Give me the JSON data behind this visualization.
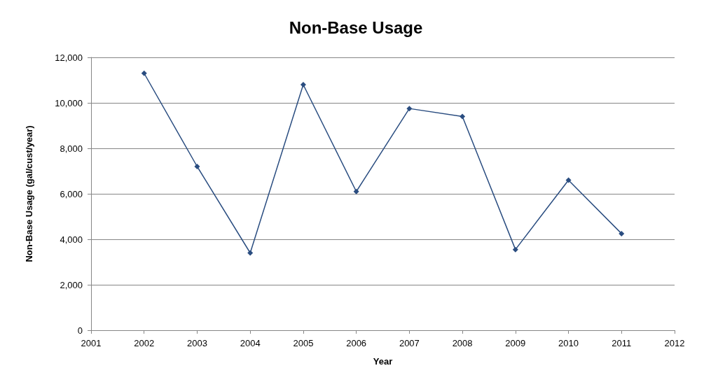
{
  "chart_data": {
    "type": "line",
    "title": "Non-Base Usage",
    "xlabel": "Year",
    "ylabel": "Non-Base Usage (gal/cust/year)",
    "x": [
      2002,
      2003,
      2004,
      2005,
      2006,
      2007,
      2008,
      2009,
      2010,
      2011
    ],
    "series": [
      {
        "color": "#2a4d80",
        "values": [
          11300,
          7200,
          3400,
          10800,
          6100,
          9750,
          9400,
          3550,
          6600,
          4250
        ]
      }
    ],
    "xlim": [
      2001,
      2012
    ],
    "xticks": [
      2001,
      2002,
      2003,
      2004,
      2005,
      2006,
      2007,
      2008,
      2009,
      2010,
      2011,
      2012
    ],
    "ylim": [
      0,
      12000
    ],
    "yticks": [
      0,
      {
        "value": 2000,
        "label": "2,000"
      },
      {
        "value": 4000,
        "label": "4,000"
      },
      {
        "value": 6000,
        "label": "6,000"
      },
      {
        "value": 8000,
        "label": "8,000"
      },
      {
        "value": 10000,
        "label": "10,000"
      },
      {
        "value": 12000,
        "label": "12,000"
      }
    ],
    "grid": "y",
    "marker": "diamond",
    "line_style": "solid"
  }
}
